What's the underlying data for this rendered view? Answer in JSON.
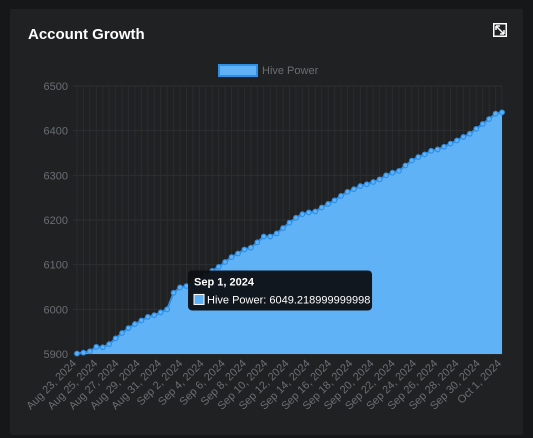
{
  "card": {
    "title": "Account Growth",
    "expand_icon": "expand-icon"
  },
  "chart_data": {
    "type": "area",
    "title": "",
    "xlabel": "",
    "ylabel": "",
    "legend": {
      "position": "top",
      "labels": [
        "Hive Power"
      ]
    },
    "ylim": [
      5900,
      6500
    ],
    "yticks": [
      5900,
      6000,
      6100,
      6200,
      6300,
      6400,
      6500
    ],
    "grid": true,
    "x_tick_labels": [
      "Aug 23, 2024",
      "Aug 25, 2024",
      "Aug 27, 2024",
      "Aug 29, 2024",
      "Aug 31, 2024",
      "Sep 2, 2024",
      "Sep 4, 2024",
      "Sep 6, 2024",
      "Sep 8, 2024",
      "Sep 10, 2024",
      "Sep 12, 2024",
      "Sep 14, 2024",
      "Sep 16, 2024",
      "Sep 18, 2024",
      "Sep 20, 2024",
      "Sep 22, 2024",
      "Sep 24, 2024",
      "Sep 26, 2024",
      "Sep 28, 2024",
      "Sep 30, 2024",
      "Oct 1, 2024"
    ],
    "series": [
      {
        "name": "Hive Power",
        "color": "#5fb2f5",
        "line_color": "#2e8fe6",
        "values": [
          5901,
          5903,
          5906,
          5916,
          5915,
          5922,
          5935,
          5947,
          5958,
          5967,
          5975,
          5983,
          5987,
          5993,
          6000,
          6037,
          6049,
          6052,
          6060,
          6066,
          6075,
          6086,
          6095,
          6106,
          6117,
          6125,
          6134,
          6138,
          6150,
          6163,
          6163,
          6170,
          6182,
          6194,
          6205,
          6213,
          6217,
          6219,
          6228,
          6236,
          6244,
          6254,
          6263,
          6269,
          6276,
          6280,
          6285,
          6291,
          6300,
          6306,
          6310,
          6322,
          6333,
          6341,
          6347,
          6355,
          6358,
          6364,
          6371,
          6378,
          6386,
          6393,
          6404,
          6415,
          6426,
          6438,
          6441
        ]
      }
    ]
  },
  "tooltip": {
    "title": "Sep 1, 2024",
    "label": "Hive Power: 6049.218999999998",
    "point_index": 16
  }
}
